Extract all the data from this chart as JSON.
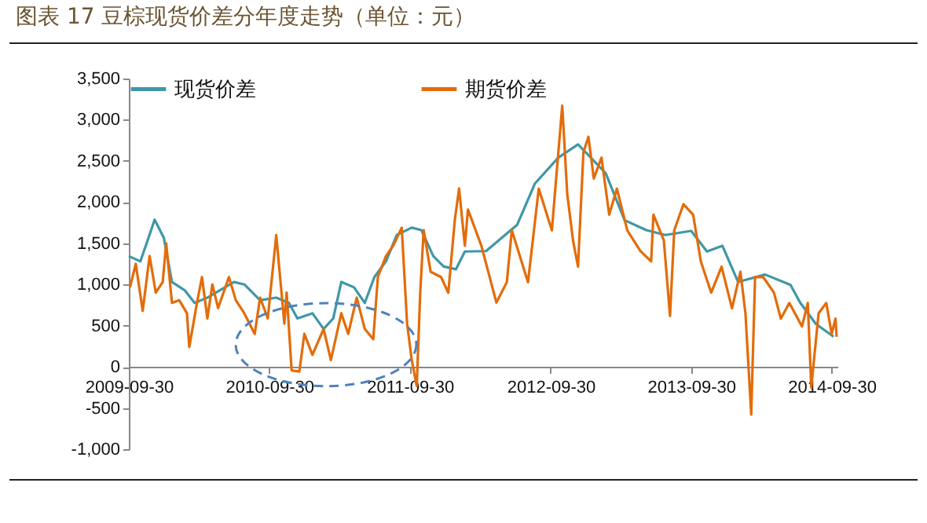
{
  "chart_data": {
    "type": "line",
    "title": "图表 17 豆棕现货价差分年度走势（单位：元）",
    "xlim": [
      "2009-09-30",
      "2014-10-15"
    ],
    "xticks": [
      "2009-09-30",
      "2010-09-30",
      "2011-09-30",
      "2012-09-30",
      "2013-09-30",
      "2014-09-30"
    ],
    "ylim": [
      -1000,
      3500
    ],
    "yticks": [
      {
        "value": -1000,
        "label": "-1,000"
      },
      {
        "value": -500,
        "label": "-500"
      },
      {
        "value": 0,
        "label": "0"
      },
      {
        "value": 500,
        "label": "500"
      },
      {
        "value": 1000,
        "label": "1,000"
      },
      {
        "value": 1500,
        "label": "1,500"
      },
      {
        "value": 2000,
        "label": "2,000"
      },
      {
        "value": 2500,
        "label": "2,500"
      },
      {
        "value": 3000,
        "label": "3,000"
      },
      {
        "value": 3500,
        "label": "3,500"
      }
    ],
    "grid": false,
    "legend": "top",
    "line_style": "solid",
    "series": [
      {
        "name": "现货价差",
        "color": "#3f97a8",
        "x": [
          "2009-09-30",
          "2009-10-30",
          "2009-11-20",
          "2009-12-06",
          "2009-12-30",
          "2010-01-20",
          "2010-02-22",
          "2010-03-20",
          "2010-04-22",
          "2010-06-30",
          "2010-07-27",
          "2010-09-06",
          "2010-10-18",
          "2010-11-20",
          "2010-12-12",
          "2011-01-20",
          "2011-02-18",
          "2011-03-15",
          "2011-04-05",
          "2011-05-08",
          "2011-06-05",
          "2011-06-30",
          "2011-07-30",
          "2011-08-27",
          "2011-10-05",
          "2011-10-30",
          "2011-11-30",
          "2011-12-27",
          "2012-01-28",
          "2012-02-20",
          "2012-04-15",
          "2012-07-05",
          "2012-08-20",
          "2012-10-20",
          "2012-12-10",
          "2013-02-20",
          "2013-04-10",
          "2013-06-05",
          "2013-07-25",
          "2013-09-30",
          "2013-11-10",
          "2013-12-20",
          "2014-01-30",
          "2014-04-10",
          "2014-06-15",
          "2014-07-10",
          "2014-08-20",
          "2014-10-05"
        ],
        "values": [
          1344,
          1280,
          1565,
          1786,
          1565,
          1030,
          930,
          776,
          840,
          1030,
          1000,
          808,
          840,
          776,
          587,
          650,
          460,
          587,
          1030,
          965,
          776,
          1090,
          1280,
          1600,
          1690,
          1660,
          1344,
          1218,
          1185,
          1400,
          1405,
          1725,
          2225,
          2540,
          2700,
          2350,
          1780,
          1660,
          1600,
          1650,
          1400,
          1470,
          1030,
          1120,
          995,
          780,
          520,
          365
        ]
      },
      {
        "name": "期货价差",
        "color": "#e36c0a",
        "x": [
          "2009-10-03",
          "2009-10-18",
          "2009-11-05",
          "2009-11-23",
          "2009-12-09",
          "2009-12-27",
          "2010-01-05",
          "2010-01-20",
          "2010-02-08",
          "2010-02-28",
          "2010-03-06",
          "2010-03-26",
          "2010-04-08",
          "2010-04-22",
          "2010-05-05",
          "2010-05-20",
          "2010-06-17",
          "2010-07-05",
          "2010-07-27",
          "2010-08-23",
          "2010-09-06",
          "2010-09-26",
          "2010-10-18",
          "2010-11-08",
          "2010-11-14",
          "2010-11-27",
          "2010-12-17",
          "2010-12-30",
          "2011-01-20",
          "2011-02-18",
          "2011-03-09",
          "2011-04-05",
          "2011-04-23",
          "2011-05-15",
          "2011-06-05",
          "2011-06-27",
          "2011-07-09",
          "2011-07-30",
          "2011-08-18",
          "2011-09-09",
          "2011-09-23",
          "2011-10-05",
          "2011-10-18",
          "2011-10-27",
          "2011-11-05",
          "2011-11-23",
          "2011-12-20",
          "2012-01-08",
          "2012-01-25",
          "2012-02-05",
          "2012-02-20",
          "2012-02-28",
          "2012-04-03",
          "2012-05-12",
          "2012-06-08",
          "2012-06-21",
          "2012-08-02",
          "2012-08-30",
          "2012-10-03",
          "2012-10-30",
          "2012-11-12",
          "2012-11-27",
          "2012-12-10",
          "2012-12-24",
          "2013-01-06",
          "2013-01-20",
          "2013-02-09",
          "2013-03-01",
          "2013-03-21",
          "2013-04-17",
          "2013-05-21",
          "2013-06-18",
          "2013-06-24",
          "2013-07-21",
          "2013-08-06",
          "2013-08-17",
          "2013-09-10",
          "2013-10-05",
          "2013-10-25",
          "2013-11-21",
          "2013-12-18",
          "2014-01-14",
          "2014-02-05",
          "2014-02-18",
          "2014-03-05",
          "2014-03-15",
          "2014-04-05",
          "2014-05-03",
          "2014-05-21",
          "2014-06-12",
          "2014-07-15",
          "2014-07-30",
          "2014-08-08",
          "2014-08-27",
          "2014-09-16",
          "2014-09-30",
          "2014-10-10",
          "2014-10-13"
        ],
        "values": [
          965,
          1250,
          680,
          1344,
          900,
          1030,
          1500,
          776,
          808,
          650,
          240,
          776,
          1090,
          587,
          1000,
          713,
          1090,
          808,
          650,
          400,
          840,
          587,
          1600,
          524,
          900,
          -44,
          -57,
          400,
          145,
          460,
          82,
          650,
          400,
          840,
          460,
          334,
          1090,
          1344,
          1470,
          1690,
          524,
          82,
          -233,
          900,
          1660,
          1155,
          1090,
          900,
          1786,
          2164,
          1470,
          1910,
          1468,
          780,
          1027,
          1657,
          1027,
          2163,
          1657,
          3171,
          2100,
          1535,
          1216,
          2603,
          2793,
          2286,
          2540,
          1847,
          2163,
          1657,
          1406,
          1280,
          1847,
          1535,
          617,
          1657,
          1974,
          1847,
          1280,
          900,
          1216,
          711,
          1153,
          650,
          -580,
          1090,
          1090,
          900,
          585,
          775,
          490,
          775,
          -250,
          650,
          775,
          400,
          585,
          365
        ]
      }
    ]
  }
}
